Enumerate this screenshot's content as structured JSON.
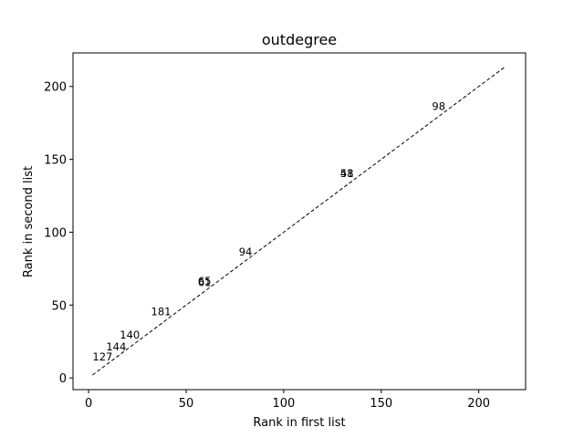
{
  "chart_data": {
    "type": "scatter",
    "title": "outdegree",
    "xlabel": "Rank in first list",
    "ylabel": "Rank in second list",
    "xlim": [
      -8,
      224
    ],
    "ylim": [
      -8,
      223
    ],
    "xticks": [
      0,
      50,
      100,
      150,
      200
    ],
    "yticks": [
      0,
      50,
      100,
      150,
      200
    ],
    "grid": false,
    "reference_line": {
      "style": "dashed",
      "color": "#000000",
      "x": [
        2,
        213
      ],
      "y": [
        2,
        213
      ]
    },
    "points": [
      {
        "label": "127",
        "x": 2,
        "y": 12
      },
      {
        "label": "144",
        "x": 9,
        "y": 19
      },
      {
        "label": "140",
        "x": 16,
        "y": 27
      },
      {
        "label": "181",
        "x": 32,
        "y": 43
      },
      {
        "label": "65",
        "x": 56,
        "y": 64
      },
      {
        "label": "61",
        "x": 56,
        "y": 63
      },
      {
        "label": "94",
        "x": 77,
        "y": 84
      },
      {
        "label": "58",
        "x": 129,
        "y": 138
      },
      {
        "label": "41",
        "x": 129,
        "y": 138
      },
      {
        "label": "98",
        "x": 176,
        "y": 184
      }
    ]
  }
}
